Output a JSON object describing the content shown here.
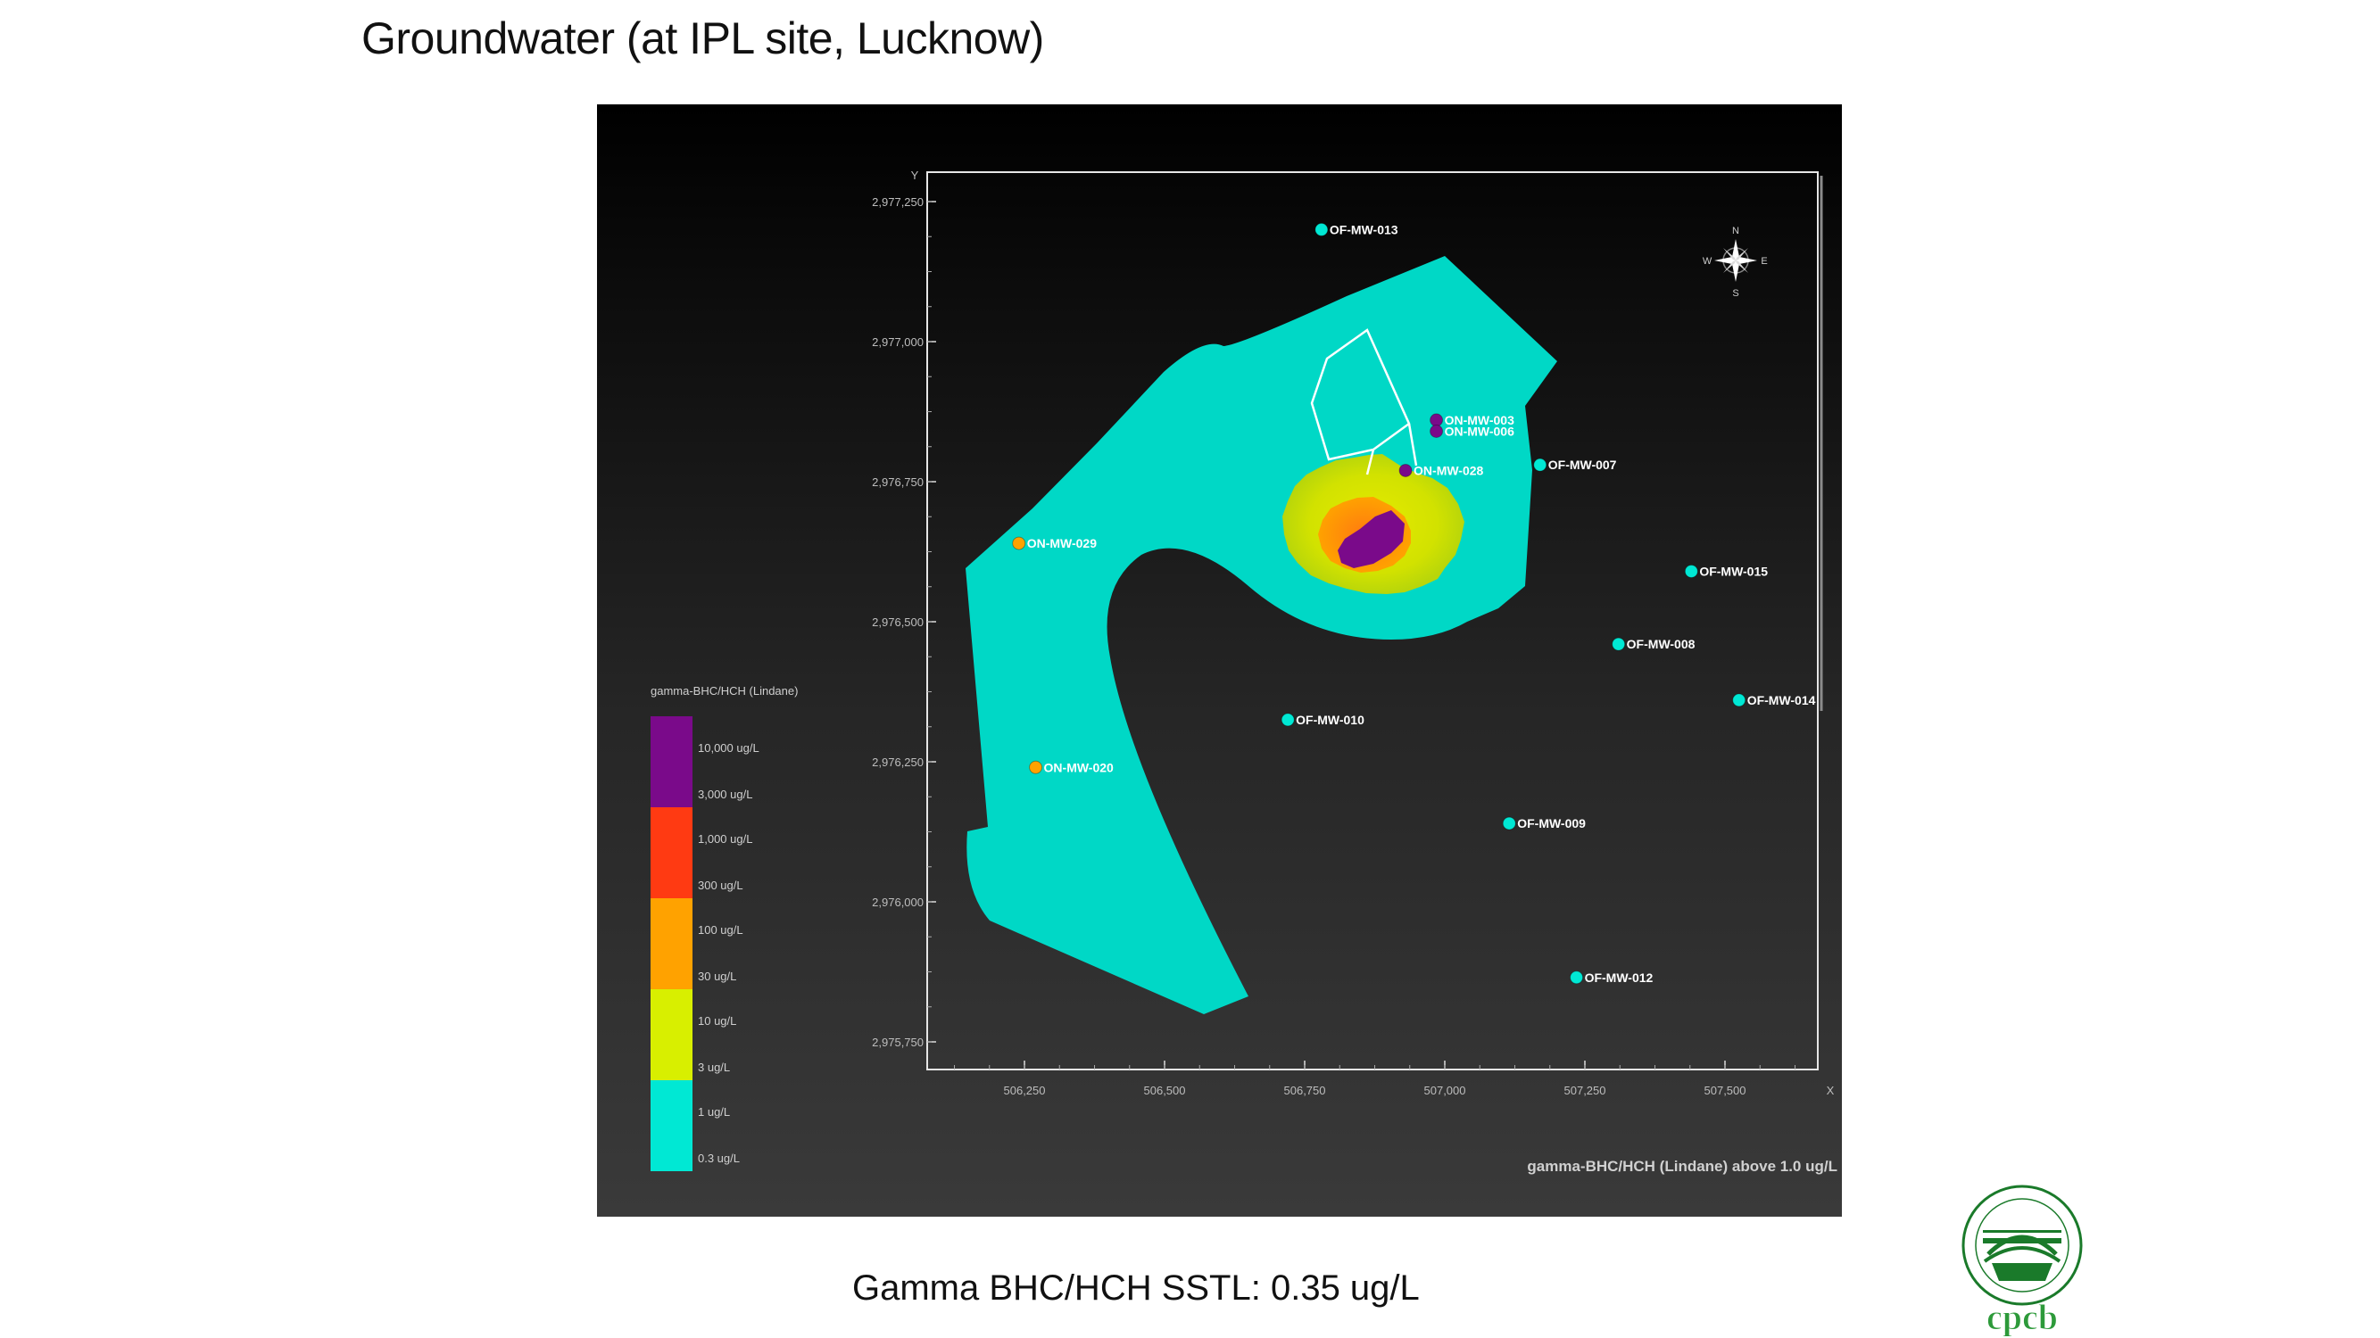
{
  "slide": {
    "title": "Groundwater (at IPL site, Lucknow)",
    "footnote": "Gamma BHC/HCH SSTL: 0.35 ug/L",
    "logo_text": "cpcb"
  },
  "chart_data": {
    "type": "contour map",
    "caption": "gamma-BHC/HCH (Lindane) above 1.0 ug/L",
    "axes": {
      "x_label": "X",
      "y_label": "Y",
      "x_ticks": [
        {
          "value": 506250,
          "label": "506,250"
        },
        {
          "value": 506500,
          "label": "506,500"
        },
        {
          "value": 506750,
          "label": "506,750"
        },
        {
          "value": 507000,
          "label": "507,000"
        },
        {
          "value": 507250,
          "label": "507,250"
        },
        {
          "value": 507500,
          "label": "507,500"
        }
      ],
      "y_ticks": [
        {
          "value": 2977250,
          "label": "2,977,250"
        },
        {
          "value": 2977000,
          "label": "2,977,000"
        },
        {
          "value": 2976750,
          "label": "2,976,750"
        },
        {
          "value": 2976500,
          "label": "2,976,500"
        },
        {
          "value": 2976250,
          "label": "2,976,250"
        },
        {
          "value": 2976000,
          "label": "2,976,000"
        },
        {
          "value": 2975750,
          "label": "2,975,750"
        }
      ],
      "xlim": [
        506160,
        507690
      ],
      "ylim": [
        2975700,
        2977300
      ],
      "grid": false
    },
    "legend": {
      "title": "gamma-BHC/HCH (Lindane)",
      "placement": "left",
      "bands": [
        {
          "color": "#7a0a8a",
          "from": 1000,
          "to": 10000
        },
        {
          "color": "#ff3a12",
          "from": 100,
          "to": 1000
        },
        {
          "color": "#ffa200",
          "from": 10,
          "to": 100
        },
        {
          "color": "#d8ef00",
          "from": 1,
          "to": 10
        },
        {
          "color": "#00e8d4",
          "from": 0.3,
          "to": 1
        }
      ],
      "labels": [
        "10,000 ug/L",
        "3,000 ug/L",
        "1,000 ug/L",
        "300 ug/L",
        "100 ug/L",
        "30 ug/L",
        "10 ug/L",
        "3 ug/L",
        "1 ug/L",
        "0.3 ug/L"
      ]
    },
    "plume_levels_ug_per_L": [
      1,
      10,
      100,
      1000
    ],
    "wells": [
      {
        "name": "OF-MW-013",
        "x": 506780,
        "y": 2977200,
        "color": "#00e8d4"
      },
      {
        "name": "ON-MW-003",
        "x": 506985,
        "y": 2976860,
        "color": "#7a0a8a"
      },
      {
        "name": "ON-MW-006",
        "x": 506985,
        "y": 2976840,
        "color": "#7a0a8a"
      },
      {
        "name": "ON-MW-028",
        "x": 506930,
        "y": 2976770,
        "color": "#7a0a8a"
      },
      {
        "name": "OF-MW-007",
        "x": 507170,
        "y": 2976780,
        "color": "#00e8d4"
      },
      {
        "name": "ON-MW-029",
        "x": 506240,
        "y": 2976640,
        "color": "#ffa200"
      },
      {
        "name": "OF-MW-015",
        "x": 507440,
        "y": 2976590,
        "color": "#00e8d4"
      },
      {
        "name": "OF-MW-008",
        "x": 507310,
        "y": 2976460,
        "color": "#00e8d4"
      },
      {
        "name": "OF-MW-014",
        "x": 507525,
        "y": 2976360,
        "color": "#00e8d4"
      },
      {
        "name": "OF-MW-010",
        "x": 506720,
        "y": 2976325,
        "color": "#00e8d4"
      },
      {
        "name": "ON-MW-020",
        "x": 506270,
        "y": 2976240,
        "color": "#ffa200"
      },
      {
        "name": "OF-MW-009",
        "x": 507115,
        "y": 2976140,
        "color": "#00e8d4"
      },
      {
        "name": "OF-MW-012",
        "x": 507235,
        "y": 2975865,
        "color": "#00e8d4"
      }
    ],
    "compass": {
      "n": "N",
      "s": "S",
      "e": "E",
      "w": "W"
    }
  }
}
